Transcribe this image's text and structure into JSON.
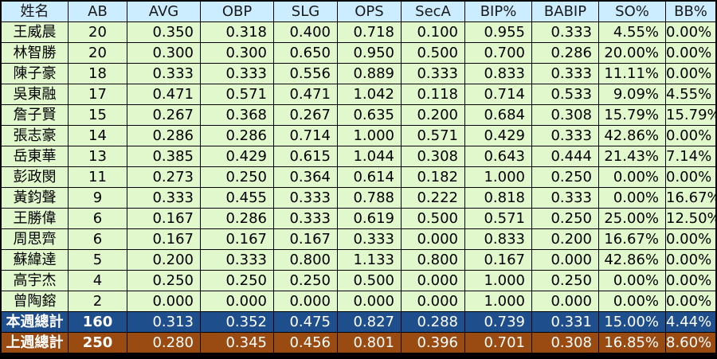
{
  "columns": [
    "姓名",
    "AB",
    "AVG",
    "OBP",
    "SLG",
    "OPS",
    "SecA",
    "BIP%",
    "BABIP",
    "SO%",
    "BB%"
  ],
  "rows": [
    [
      "王威晨",
      "20",
      "0.350",
      "0.318",
      "0.400",
      "0.718",
      "0.100",
      "0.955",
      "0.333",
      "4.55%",
      "0.00%"
    ],
    [
      "林智勝",
      "20",
      "0.300",
      "0.300",
      "0.650",
      "0.950",
      "0.500",
      "0.700",
      "0.286",
      "20.00%",
      "0.00%"
    ],
    [
      "陳子豪",
      "18",
      "0.333",
      "0.333",
      "0.556",
      "0.889",
      "0.333",
      "0.833",
      "0.333",
      "11.11%",
      "0.00%"
    ],
    [
      "吳東融",
      "17",
      "0.471",
      "0.571",
      "0.471",
      "1.042",
      "0.118",
      "0.714",
      "0.533",
      "9.09%",
      "4.55%"
    ],
    [
      "詹子賢",
      "15",
      "0.267",
      "0.368",
      "0.267",
      "0.635",
      "0.200",
      "0.684",
      "0.308",
      "15.79%",
      "15.79%"
    ],
    [
      "張志豪",
      "14",
      "0.286",
      "0.286",
      "0.714",
      "1.000",
      "0.571",
      "0.429",
      "0.333",
      "42.86%",
      "0.00%"
    ],
    [
      "岳東華",
      "13",
      "0.385",
      "0.429",
      "0.615",
      "1.044",
      "0.308",
      "0.643",
      "0.444",
      "21.43%",
      "7.14%"
    ],
    [
      "彭政閔",
      "11",
      "0.273",
      "0.250",
      "0.364",
      "0.614",
      "0.182",
      "1.000",
      "0.250",
      "0.00%",
      "0.00%"
    ],
    [
      "黃鈞聲",
      "9",
      "0.333",
      "0.455",
      "0.333",
      "0.788",
      "0.222",
      "0.818",
      "0.333",
      "0.00%",
      "16.67%"
    ],
    [
      "王勝偉",
      "6",
      "0.167",
      "0.286",
      "0.333",
      "0.619",
      "0.500",
      "0.571",
      "0.250",
      "25.00%",
      "12.50%"
    ],
    [
      "周思齊",
      "6",
      "0.167",
      "0.167",
      "0.167",
      "0.333",
      "0.000",
      "0.833",
      "0.200",
      "16.67%",
      "0.00%"
    ],
    [
      "蘇緯達",
      "5",
      "0.200",
      "0.333",
      "0.800",
      "1.133",
      "0.800",
      "0.167",
      "0.000",
      "42.86%",
      "0.00%"
    ],
    [
      "高宇杰",
      "4",
      "0.250",
      "0.250",
      "0.250",
      "0.500",
      "0.000",
      "1.000",
      "0.250",
      "0.00%",
      "0.00%"
    ],
    [
      "曾陶鎔",
      "2",
      "0.000",
      "0.000",
      "0.000",
      "0.000",
      "0.000",
      "1.000",
      "0.000",
      "0.00%",
      "0.00%"
    ]
  ],
  "totals": {
    "this_week": [
      "本週總計",
      "160",
      "0.313",
      "0.352",
      "0.475",
      "0.827",
      "0.288",
      "0.739",
      "0.331",
      "15.00%",
      "4.44%"
    ],
    "last_week": [
      "上週總計",
      "250",
      "0.280",
      "0.345",
      "0.456",
      "0.801",
      "0.396",
      "0.701",
      "0.308",
      "16.85%",
      "8.60%"
    ]
  },
  "colors": {
    "header_bg": "#ccecff",
    "row_bg": "#e1f7cc",
    "this_week_bg": "#1f4e8c",
    "last_week_bg": "#9a4b12",
    "border": "#000000"
  }
}
